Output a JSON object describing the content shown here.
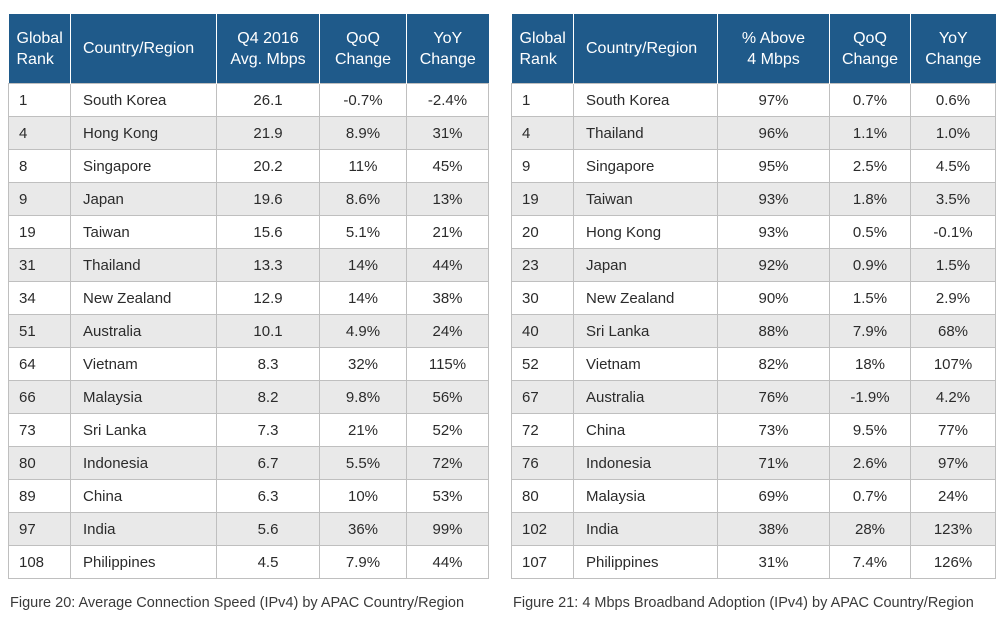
{
  "tables": [
    {
      "headers": [
        [
          "Global",
          "Rank"
        ],
        [
          "Country/Region"
        ],
        [
          "Q4 2016",
          "Avg. Mbps"
        ],
        [
          "QoQ",
          "Change"
        ],
        [
          "YoY",
          "Change"
        ]
      ],
      "rows": [
        [
          "1",
          "South Korea",
          "26.1",
          "-0.7%",
          "-2.4%"
        ],
        [
          "4",
          "Hong Kong",
          "21.9",
          "8.9%",
          "31%"
        ],
        [
          "8",
          "Singapore",
          "20.2",
          "11%",
          "45%"
        ],
        [
          "9",
          "Japan",
          "19.6",
          "8.6%",
          "13%"
        ],
        [
          "19",
          "Taiwan",
          "15.6",
          "5.1%",
          "21%"
        ],
        [
          "31",
          "Thailand",
          "13.3",
          "14%",
          "44%"
        ],
        [
          "34",
          "New Zealand",
          "12.9",
          "14%",
          "38%"
        ],
        [
          "51",
          "Australia",
          "10.1",
          "4.9%",
          "24%"
        ],
        [
          "64",
          "Vietnam",
          "8.3",
          "32%",
          "115%"
        ],
        [
          "66",
          "Malaysia",
          "8.2",
          "9.8%",
          "56%"
        ],
        [
          "73",
          "Sri Lanka",
          "7.3",
          "21%",
          "52%"
        ],
        [
          "80",
          "Indonesia",
          "6.7",
          "5.5%",
          "72%"
        ],
        [
          "89",
          "China",
          "6.3",
          "10%",
          "53%"
        ],
        [
          "97",
          "India",
          "5.6",
          "36%",
          "99%"
        ],
        [
          "108",
          "Philippines",
          "4.5",
          "7.9%",
          "44%"
        ]
      ],
      "caption": "Figure 20: Average Connection Speed (IPv4) by APAC Country/Region"
    },
    {
      "headers": [
        [
          "Global",
          "Rank"
        ],
        [
          "Country/Region"
        ],
        [
          "% Above",
          "4 Mbps"
        ],
        [
          "QoQ",
          "Change"
        ],
        [
          "YoY",
          "Change"
        ]
      ],
      "rows": [
        [
          "1",
          "South Korea",
          "97%",
          "0.7%",
          "0.6%"
        ],
        [
          "4",
          "Thailand",
          "96%",
          "1.1%",
          "1.0%"
        ],
        [
          "9",
          "Singapore",
          "95%",
          "2.5%",
          "4.5%"
        ],
        [
          "19",
          "Taiwan",
          "93%",
          "1.8%",
          "3.5%"
        ],
        [
          "20",
          "Hong Kong",
          "93%",
          "0.5%",
          "-0.1%"
        ],
        [
          "23",
          "Japan",
          "92%",
          "0.9%",
          "1.5%"
        ],
        [
          "30",
          "New Zealand",
          "90%",
          "1.5%",
          "2.9%"
        ],
        [
          "40",
          "Sri Lanka",
          "88%",
          "7.9%",
          "68%"
        ],
        [
          "52",
          "Vietnam",
          "82%",
          "18%",
          "107%"
        ],
        [
          "67",
          "Australia",
          "76%",
          "-1.9%",
          "4.2%"
        ],
        [
          "72",
          "China",
          "73%",
          "9.5%",
          "77%"
        ],
        [
          "76",
          "Indonesia",
          "71%",
          "2.6%",
          "97%"
        ],
        [
          "80",
          "Malaysia",
          "69%",
          "0.7%",
          "24%"
        ],
        [
          "102",
          "India",
          "38%",
          "28%",
          "123%"
        ],
        [
          "107",
          "Philippines",
          "31%",
          "7.4%",
          "126%"
        ]
      ],
      "caption": "Figure 21: 4 Mbps Broadband Adoption (IPv4) by APAC Country/Region"
    }
  ],
  "colors": {
    "header_bg": "#1f5a8a",
    "header_text": "#ffffff",
    "alt_row": "#e9e9e9",
    "border": "#bfbfbf"
  },
  "chart_data": [
    {
      "type": "table",
      "columns": [
        "Global Rank",
        "Country/Region",
        "Q4 2016 Avg. Mbps",
        "QoQ Change",
        "YoY Change"
      ],
      "rows": [
        [
          "1",
          "South Korea",
          26.1,
          "-0.7%",
          "-2.4%"
        ],
        [
          "4",
          "Hong Kong",
          21.9,
          "8.9%",
          "31%"
        ],
        [
          "8",
          "Singapore",
          20.2,
          "11%",
          "45%"
        ],
        [
          "9",
          "Japan",
          19.6,
          "8.6%",
          "13%"
        ],
        [
          "19",
          "Taiwan",
          15.6,
          "5.1%",
          "21%"
        ],
        [
          "31",
          "Thailand",
          13.3,
          "14%",
          "44%"
        ],
        [
          "34",
          "New Zealand",
          12.9,
          "14%",
          "38%"
        ],
        [
          "51",
          "Australia",
          10.1,
          "4.9%",
          "24%"
        ],
        [
          "64",
          "Vietnam",
          8.3,
          "32%",
          "115%"
        ],
        [
          "66",
          "Malaysia",
          8.2,
          "9.8%",
          "56%"
        ],
        [
          "73",
          "Sri Lanka",
          7.3,
          "21%",
          "52%"
        ],
        [
          "80",
          "Indonesia",
          6.7,
          "5.5%",
          "72%"
        ],
        [
          "89",
          "China",
          6.3,
          "10%",
          "53%"
        ],
        [
          "97",
          "India",
          5.6,
          "36%",
          "99%"
        ],
        [
          "108",
          "Philippines",
          4.5,
          "7.9%",
          "44%"
        ]
      ],
      "title": "Figure 20: Average Connection Speed (IPv4) by APAC Country/Region"
    },
    {
      "type": "table",
      "columns": [
        "Global Rank",
        "Country/Region",
        "% Above 4 Mbps",
        "QoQ Change",
        "YoY Change"
      ],
      "rows": [
        [
          "1",
          "South Korea",
          "97%",
          "0.7%",
          "0.6%"
        ],
        [
          "4",
          "Thailand",
          "96%",
          "1.1%",
          "1.0%"
        ],
        [
          "9",
          "Singapore",
          "95%",
          "2.5%",
          "4.5%"
        ],
        [
          "19",
          "Taiwan",
          "93%",
          "1.8%",
          "3.5%"
        ],
        [
          "20",
          "Hong Kong",
          "93%",
          "0.5%",
          "-0.1%"
        ],
        [
          "23",
          "Japan",
          "92%",
          "0.9%",
          "1.5%"
        ],
        [
          "30",
          "New Zealand",
          "90%",
          "1.5%",
          "2.9%"
        ],
        [
          "40",
          "Sri Lanka",
          "88%",
          "7.9%",
          "68%"
        ],
        [
          "52",
          "Vietnam",
          "82%",
          "18%",
          "107%"
        ],
        [
          "67",
          "Australia",
          "76%",
          "-1.9%",
          "4.2%"
        ],
        [
          "72",
          "China",
          "73%",
          "9.5%",
          "77%"
        ],
        [
          "76",
          "Indonesia",
          "71%",
          "2.6%",
          "97%"
        ],
        [
          "80",
          "Malaysia",
          "69%",
          "0.7%",
          "24%"
        ],
        [
          "102",
          "India",
          "38%",
          "28%",
          "123%"
        ],
        [
          "107",
          "Philippines",
          "31%",
          "7.4%",
          "126%"
        ]
      ],
      "title": "Figure 21: 4 Mbps Broadband Adoption (IPv4) by APAC Country/Region"
    }
  ]
}
